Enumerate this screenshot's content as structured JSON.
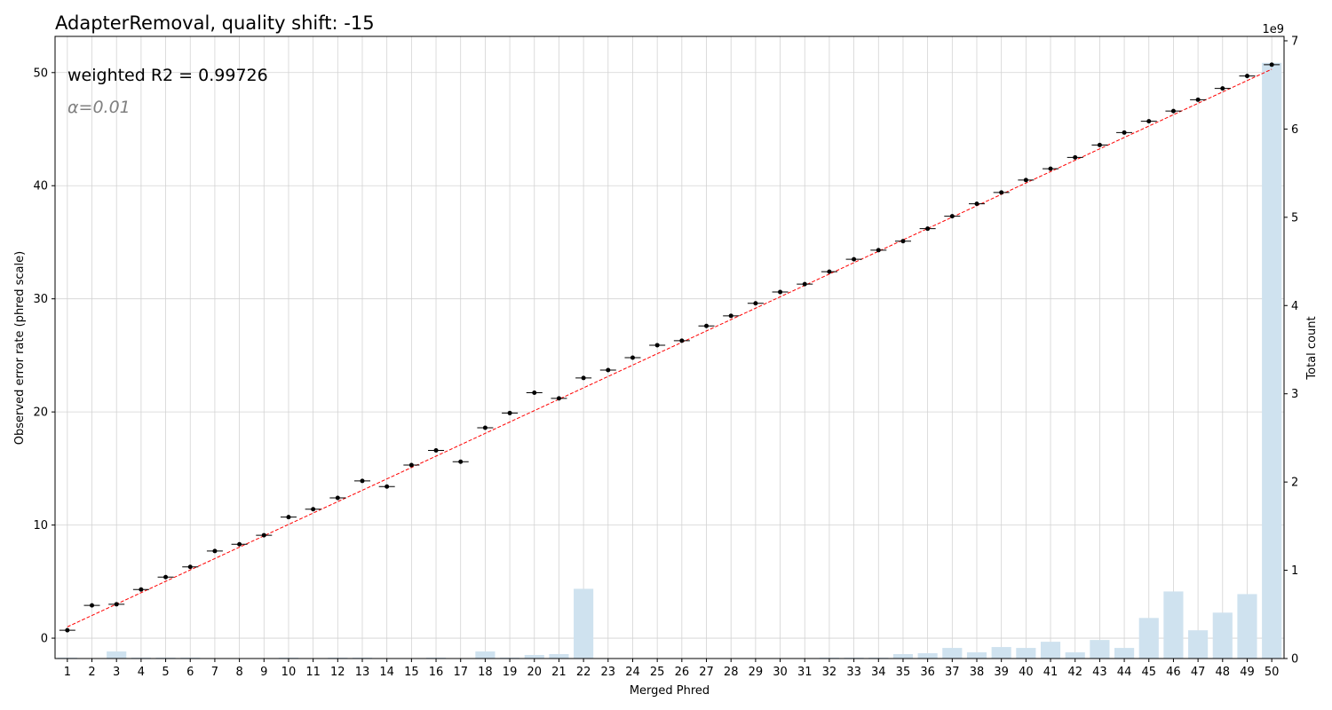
{
  "chart_data": {
    "type": "scatter",
    "title": "AdapterRemoval, quality shift: -15",
    "xlabel": "Merged Phred",
    "ylabel": "Observed error rate (phred scale)",
    "y2label": "Total count",
    "y2_offset_text": "1e9",
    "annotation_r2": "weighted R2 = 0.99726",
    "annotation_alpha": "α=0.01",
    "xlim": [
      0.5,
      50.5
    ],
    "ylim": [
      -1.8,
      53.2
    ],
    "y2lim": [
      0,
      7.05
    ],
    "y_ticks": [
      0,
      10,
      20,
      30,
      40,
      50
    ],
    "y2_ticks": [
      0,
      1,
      2,
      3,
      4,
      5,
      6,
      7
    ],
    "grid": true,
    "colors": {
      "points": "#000000",
      "fit_line": "#ff0000",
      "bars": "#cfe2ef",
      "grid": "#d3d3d3"
    },
    "x": [
      1,
      2,
      3,
      4,
      5,
      6,
      7,
      8,
      9,
      10,
      11,
      12,
      13,
      14,
      15,
      16,
      17,
      18,
      19,
      20,
      21,
      22,
      23,
      24,
      25,
      26,
      27,
      28,
      29,
      30,
      31,
      32,
      33,
      34,
      35,
      36,
      37,
      38,
      39,
      40,
      41,
      42,
      43,
      44,
      45,
      46,
      47,
      48,
      49,
      50
    ],
    "series": [
      {
        "name": "Observed error rate",
        "kind": "points_with_errorbars",
        "values": [
          0.7,
          2.9,
          3.0,
          4.3,
          5.4,
          6.3,
          7.7,
          8.3,
          9.1,
          10.7,
          11.4,
          12.4,
          13.9,
          13.4,
          15.3,
          16.6,
          15.6,
          18.6,
          19.9,
          21.7,
          21.2,
          23.0,
          23.7,
          24.8,
          25.9,
          26.3,
          27.6,
          28.5,
          29.6,
          30.6,
          31.3,
          32.4,
          33.5,
          34.3,
          35.1,
          36.2,
          37.3,
          38.4,
          39.4,
          40.5,
          41.5,
          42.5,
          43.6,
          44.7,
          45.7,
          46.6,
          47.6,
          48.6,
          49.7,
          50.7
        ]
      },
      {
        "name": "Total count",
        "kind": "bars",
        "axis": "y2",
        "values": [
          0.01,
          0.0,
          0.08,
          0.01,
          0.01,
          0.01,
          0.0,
          0.0,
          0.0,
          0.01,
          0.0,
          0.01,
          0.01,
          0.0,
          0.0,
          0.01,
          0.0,
          0.08,
          0.01,
          0.04,
          0.05,
          0.79,
          0.0,
          0.0,
          0.0,
          0.0,
          0.0,
          0.0,
          0.0,
          0.0,
          0.0,
          0.01,
          0.01,
          0.01,
          0.05,
          0.06,
          0.12,
          0.07,
          0.13,
          0.12,
          0.19,
          0.07,
          0.21,
          0.12,
          0.46,
          0.76,
          0.32,
          0.52,
          0.73,
          6.75
        ]
      },
      {
        "name": "Fit",
        "kind": "line",
        "from": [
          1,
          1.0
        ],
        "to": [
          50,
          50.3
        ]
      }
    ]
  }
}
